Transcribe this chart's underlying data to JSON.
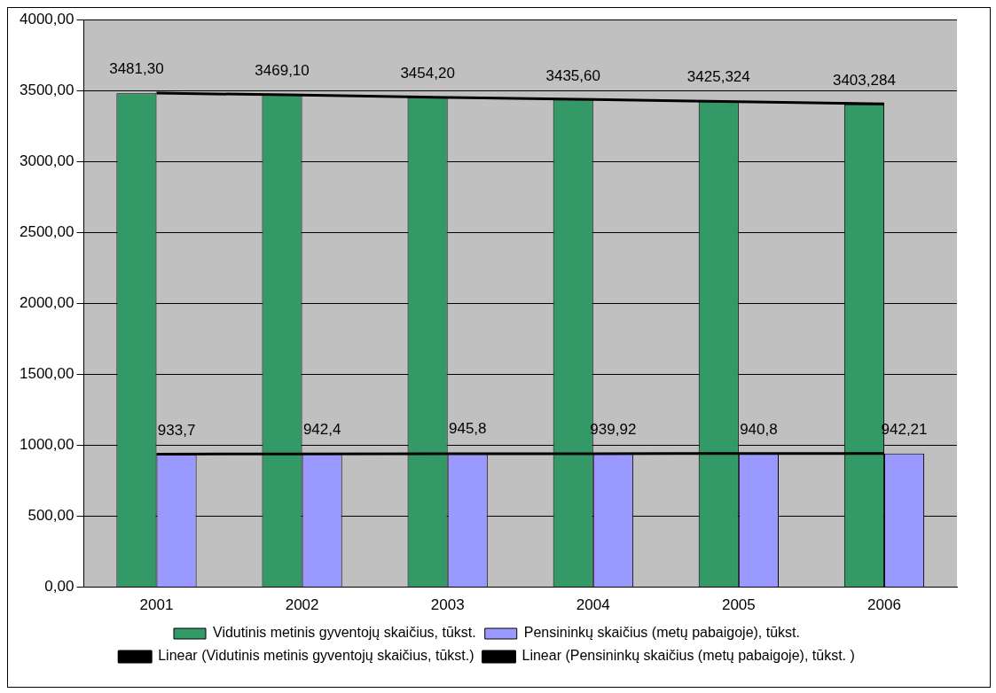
{
  "chart_data": {
    "type": "bar",
    "categories": [
      "2001",
      "2002",
      "2003",
      "2004",
      "2005",
      "2006"
    ],
    "ylim": [
      0,
      4000
    ],
    "yticks": [
      {
        "value": 0,
        "label": "0,00"
      },
      {
        "value": 500,
        "label": "500,00"
      },
      {
        "value": 1000,
        "label": "1000,00"
      },
      {
        "value": 1500,
        "label": "1500,00"
      },
      {
        "value": 2000,
        "label": "2000,00"
      },
      {
        "value": 2500,
        "label": "2500,00"
      },
      {
        "value": 3000,
        "label": "3000,00"
      },
      {
        "value": 3500,
        "label": "3500,00"
      },
      {
        "value": 4000,
        "label": "4000,00"
      }
    ],
    "grid": "y",
    "legend": "bottom",
    "marker": "none",
    "line_style": "solid",
    "series": [
      {
        "name": "Vidutinis metinis gyventojų skaičius, tūkst.",
        "color": "#339966",
        "values": [
          3481.3,
          3469.1,
          3454.2,
          3435.6,
          3425.324,
          3403.284
        ],
        "value_labels": [
          "3481,30",
          "3469,10",
          "3454,20",
          "3435,60",
          "3425,324",
          "3403,284"
        ]
      },
      {
        "name": "Pensininkų skaičius (metų pabaigoje), tūkst.",
        "color": "#9999ff",
        "values": [
          933.7,
          942.4,
          945.8,
          939.92,
          940.8,
          942.21
        ],
        "value_labels": [
          "933,7",
          "942,4",
          "945,8",
          "939,92",
          "940,8",
          "942,21"
        ]
      },
      {
        "name": "Linear (Vidutinis metinis gyventojų skaičius, tūkst.)",
        "type": "line",
        "color": "#000000",
        "values": [
          3483,
          3468,
          3452,
          3437,
          3422,
          3406
        ]
      },
      {
        "name": "Linear (Pensininkų skaičius (metų pabaigoje), tūkst. )",
        "type": "line",
        "color": "#000000",
        "values": [
          938,
          939,
          940,
          941,
          942,
          943
        ]
      }
    ]
  }
}
